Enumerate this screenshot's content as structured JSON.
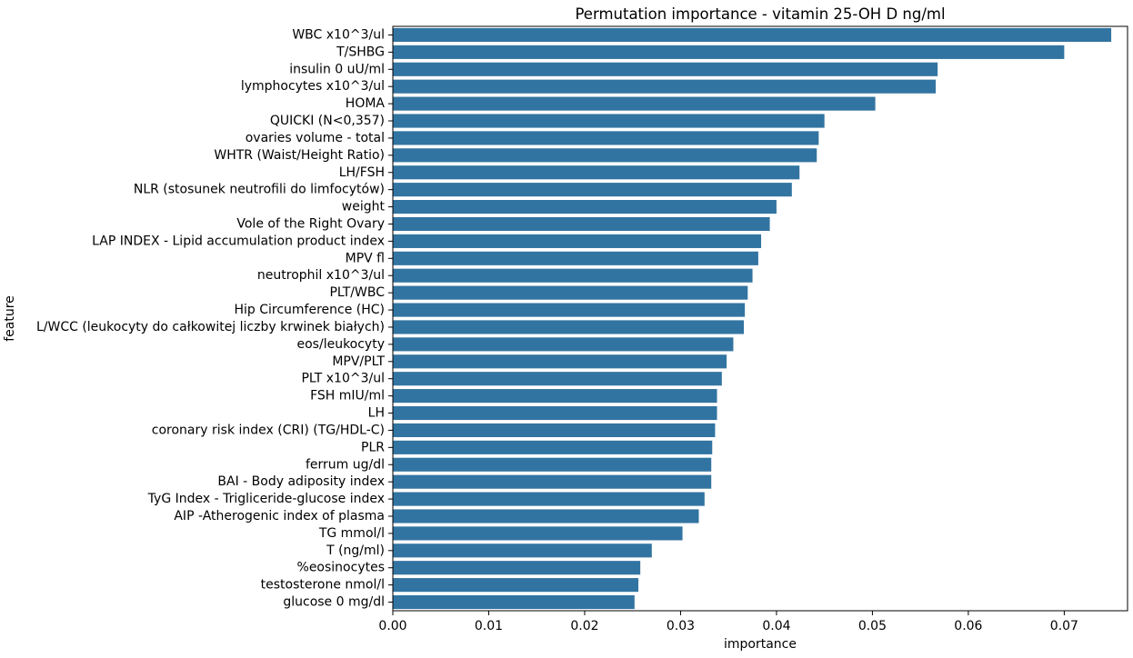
{
  "chart_data": {
    "type": "bar",
    "orientation": "horizontal",
    "title": "Permutation importance - vitamin 25-OH D ng/ml",
    "xlabel": "importance",
    "ylabel": "feature",
    "xlim": [
      0,
      0.0766
    ],
    "xticks": [
      "0.00",
      "0.01",
      "0.02",
      "0.03",
      "0.04",
      "0.05",
      "0.06",
      "0.07"
    ],
    "bar_color": "#3274a1",
    "grid": false,
    "categories": [
      "WBC x10^3/ul",
      "T/SHBG",
      "insulin 0 uU/ml",
      "lymphocytes x10^3/ul",
      "HOMA",
      "QUICKI (N<0,357)",
      "ovaries volume - total",
      "WHTR (Waist/Height Ratio)",
      "LH/FSH",
      "NLR (stosunek neutrofili do limfocytów)",
      "weight",
      "Vole of the Right Ovary",
      "LAP INDEX - Lipid accumulation product index",
      "MPV fl",
      "neutrophil x10^3/ul",
      "PLT/WBC",
      "Hip Circumference (HC)",
      "L/WCC (leukocyty do całkowitej liczby krwinek białych)",
      "eos/leukocyty",
      "MPV/PLT",
      "PLT x10^3/ul",
      "FSH mIU/ml",
      "LH",
      "coronary risk index (CRI) (TG/HDL-C)",
      "PLR",
      "ferrum ug/dl",
      "BAI - Body adiposity index",
      "TyG Index - Trigliceride-glucose index",
      "AIP -Atherogenic index of plasma",
      "TG mmol/l",
      "T (ng/ml)",
      "%eosinocytes ",
      "testosterone nmol/l",
      "glucose 0 mg/dl"
    ],
    "values": [
      0.0749,
      0.07,
      0.0568,
      0.0566,
      0.0503,
      0.045,
      0.0444,
      0.0442,
      0.0424,
      0.0416,
      0.04,
      0.0393,
      0.0384,
      0.0381,
      0.0375,
      0.037,
      0.0367,
      0.0366,
      0.0355,
      0.0348,
      0.0343,
      0.0338,
      0.0338,
      0.0336,
      0.0333,
      0.0332,
      0.0332,
      0.0325,
      0.0319,
      0.0302,
      0.027,
      0.0258,
      0.0256,
      0.0252
    ]
  }
}
